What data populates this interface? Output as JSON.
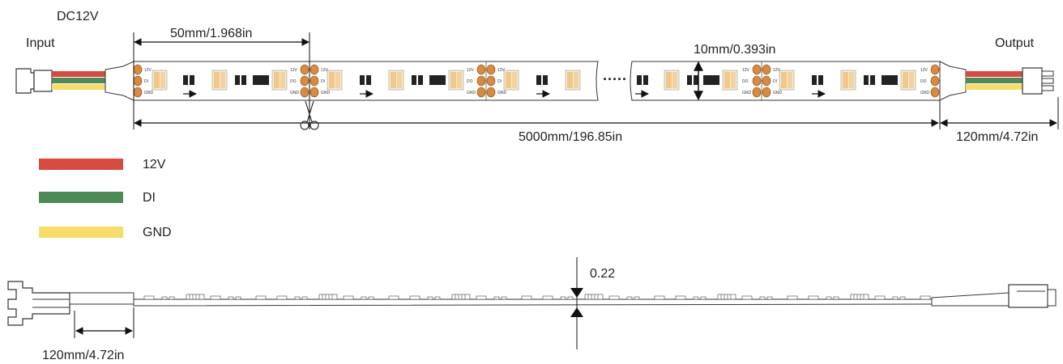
{
  "colors": {
    "red": "#d64a3f",
    "green": "#4f8a56",
    "yellow": "#f8dc6a",
    "pad": "#d98a3e",
    "led_warm": "#f0c88a",
    "led_cool": "#f7ebd2",
    "ic": "#222222"
  },
  "top_view": {
    "voltage": "DC12V",
    "input_label": "Input",
    "output_label": "Output",
    "segment_length": "50mm/1.968in",
    "width": "10mm/0.393in",
    "total_length": "5000mm/196.85in",
    "lead_length": "120mm/4.72in",
    "ellipsis": "·····",
    "pad_labels_in": [
      "12V",
      "DI",
      "GND"
    ],
    "pad_labels_out": [
      "12V",
      "DO",
      "GND"
    ]
  },
  "legend": [
    {
      "label": "12V",
      "color": "#d64a3f"
    },
    {
      "label": "DI",
      "color": "#4f8a56"
    },
    {
      "label": "GND",
      "color": "#f8dc6a"
    }
  ],
  "side_view": {
    "thickness": "0.22",
    "lead_length": "120mm/4.72in"
  }
}
